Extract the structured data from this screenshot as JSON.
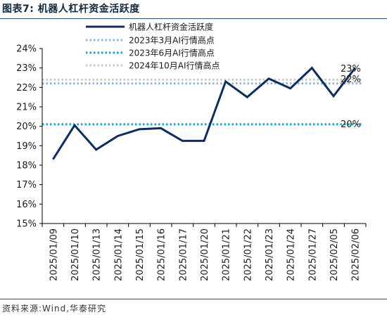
{
  "header": {
    "title": "图表7:  机器人杠杆资金活跃度"
  },
  "footer": {
    "source": "资料来源:Wind,华泰研究"
  },
  "colors": {
    "main_series": "#0d2d5c",
    "ref_mar2023": "#8fb3d9",
    "ref_jun2023": "#19a3c9",
    "ref_oct2024": "#c9c9c9",
    "axis": "#000000",
    "title_rule": "#2f4a6a"
  },
  "chart_data": {
    "type": "line",
    "title": "",
    "xlabel": "",
    "ylabel": "",
    "ylim": [
      15,
      24
    ],
    "y_unit": "%",
    "y_ticks": [
      "15%",
      "16%",
      "17%",
      "18%",
      "19%",
      "20%",
      "21%",
      "22%",
      "23%",
      "24%"
    ],
    "categories": [
      "2025/01/09",
      "2025/01/10",
      "2025/01/13",
      "2025/01/14",
      "2025/01/15",
      "2025/01/16",
      "2025/01/17",
      "2025/01/20",
      "2025/01/21",
      "2025/01/22",
      "2025/01/23",
      "2025/01/24",
      "2025/01/27",
      "2025/02/05",
      "2025/02/06"
    ],
    "series": [
      {
        "name": "机器人杠杆资金活跃度",
        "values": [
          18.3,
          20.05,
          18.8,
          19.5,
          19.85,
          19.9,
          19.25,
          19.25,
          22.3,
          21.5,
          22.45,
          21.95,
          23.0,
          21.55,
          23.0
        ],
        "color": "#0d2d5c",
        "style": "solid"
      }
    ],
    "reference_lines": [
      {
        "name": "2023年3月AI行情高点",
        "value": 22.2,
        "color": "#8fb3d9",
        "style": "dotted",
        "label": "22%"
      },
      {
        "name": "2023年6月AI行情高点",
        "value": 20.1,
        "color": "#19a3c9",
        "style": "dotted",
        "label": "20%"
      },
      {
        "name": "2024年10月AI行情高点",
        "value": 22.4,
        "color": "#c9c9c9",
        "style": "dotted",
        "label": ""
      }
    ],
    "annotations": [
      "23%",
      "22%",
      "20%"
    ],
    "legend_position": "top-center",
    "grid": false
  }
}
